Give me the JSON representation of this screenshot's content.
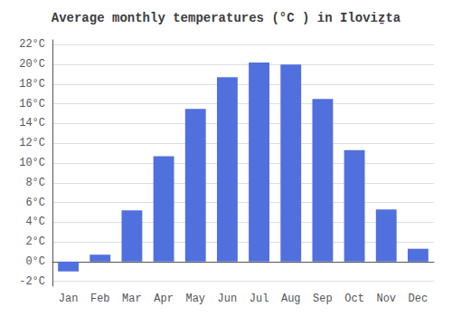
{
  "chart_data": {
    "type": "bar",
    "title": "Average monthly temperatures (°C ) in Iloviẕta",
    "categories": [
      "Jan",
      "Feb",
      "Mar",
      "Apr",
      "May",
      "Jun",
      "Jul",
      "Aug",
      "Sep",
      "Oct",
      "Nov",
      "Dec"
    ],
    "values": [
      -1.0,
      0.7,
      5.2,
      10.7,
      15.5,
      18.7,
      20.2,
      20.0,
      16.5,
      11.3,
      5.3,
      1.3
    ],
    "ylim": [
      -2.5,
      22.5
    ],
    "yticks": [
      {
        "value": -2,
        "label": "-2°C"
      },
      {
        "value": 0,
        "label": "0°C"
      },
      {
        "value": 2,
        "label": "2°C"
      },
      {
        "value": 4,
        "label": "4°C"
      },
      {
        "value": 6,
        "label": "6°C"
      },
      {
        "value": 8,
        "label": "8°C"
      },
      {
        "value": 10,
        "label": "10°C"
      },
      {
        "value": 12,
        "label": "12°C"
      },
      {
        "value": 14,
        "label": "14°C"
      },
      {
        "value": 16,
        "label": "16°C"
      },
      {
        "value": 18,
        "label": "18°C"
      },
      {
        "value": 20,
        "label": "20°C"
      },
      {
        "value": 22,
        "label": "22°C"
      }
    ],
    "grid": true
  }
}
